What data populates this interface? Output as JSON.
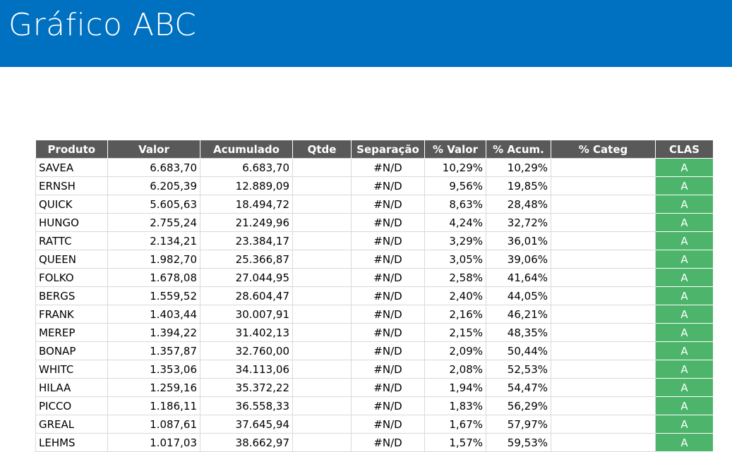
{
  "header": {
    "title": "Gráfico ABC"
  },
  "table": {
    "columns": [
      "Produto",
      "Valor",
      "Acumulado",
      "Qtde",
      "Separação",
      "% Valor",
      "% Acum.",
      "% Categ",
      "CLAS"
    ],
    "rows": [
      {
        "produto": "SAVEA",
        "valor": "6.683,70",
        "acumulado": "6.683,70",
        "separacao": "#N/D",
        "pct_valor": "10,29%",
        "pct_acum": "10,29%",
        "clas": "A"
      },
      {
        "produto": "ERNSH",
        "valor": "6.205,39",
        "acumulado": "12.889,09",
        "separacao": "#N/D",
        "pct_valor": "9,56%",
        "pct_acum": "19,85%",
        "clas": "A"
      },
      {
        "produto": "QUICK",
        "valor": "5.605,63",
        "acumulado": "18.494,72",
        "separacao": "#N/D",
        "pct_valor": "8,63%",
        "pct_acum": "28,48%",
        "clas": "A"
      },
      {
        "produto": "HUNGO",
        "valor": "2.755,24",
        "acumulado": "21.249,96",
        "separacao": "#N/D",
        "pct_valor": "4,24%",
        "pct_acum": "32,72%",
        "clas": "A"
      },
      {
        "produto": "RATTC",
        "valor": "2.134,21",
        "acumulado": "23.384,17",
        "separacao": "#N/D",
        "pct_valor": "3,29%",
        "pct_acum": "36,01%",
        "clas": "A"
      },
      {
        "produto": "QUEEN",
        "valor": "1.982,70",
        "acumulado": "25.366,87",
        "separacao": "#N/D",
        "pct_valor": "3,05%",
        "pct_acum": "39,06%",
        "clas": "A"
      },
      {
        "produto": "FOLKO",
        "valor": "1.678,08",
        "acumulado": "27.044,95",
        "separacao": "#N/D",
        "pct_valor": "2,58%",
        "pct_acum": "41,64%",
        "clas": "A"
      },
      {
        "produto": "BERGS",
        "valor": "1.559,52",
        "acumulado": "28.604,47",
        "separacao": "#N/D",
        "pct_valor": "2,40%",
        "pct_acum": "44,05%",
        "clas": "A"
      },
      {
        "produto": "FRANK",
        "valor": "1.403,44",
        "acumulado": "30.007,91",
        "separacao": "#N/D",
        "pct_valor": "2,16%",
        "pct_acum": "46,21%",
        "clas": "A"
      },
      {
        "produto": "MEREP",
        "valor": "1.394,22",
        "acumulado": "31.402,13",
        "separacao": "#N/D",
        "pct_valor": "2,15%",
        "pct_acum": "48,35%",
        "clas": "A"
      },
      {
        "produto": "BONAP",
        "valor": "1.357,87",
        "acumulado": "32.760,00",
        "separacao": "#N/D",
        "pct_valor": "2,09%",
        "pct_acum": "50,44%",
        "clas": "A"
      },
      {
        "produto": "WHITC",
        "valor": "1.353,06",
        "acumulado": "34.113,06",
        "separacao": "#N/D",
        "pct_valor": "2,08%",
        "pct_acum": "52,53%",
        "clas": "A"
      },
      {
        "produto": "HILAA",
        "valor": "1.259,16",
        "acumulado": "35.372,22",
        "separacao": "#N/D",
        "pct_valor": "1,94%",
        "pct_acum": "54,47%",
        "clas": "A"
      },
      {
        "produto": "PICCO",
        "valor": "1.186,11",
        "acumulado": "36.558,33",
        "separacao": "#N/D",
        "pct_valor": "1,83%",
        "pct_acum": "56,29%",
        "clas": "A"
      },
      {
        "produto": "GREAL",
        "valor": "1.087,61",
        "acumulado": "37.645,94",
        "separacao": "#N/D",
        "pct_valor": "1,67%",
        "pct_acum": "57,97%",
        "clas": "A"
      },
      {
        "produto": "LEHMS",
        "valor": "1.017,03",
        "acumulado": "38.662,97",
        "separacao": "#N/D",
        "pct_valor": "1,57%",
        "pct_acum": "59,53%",
        "clas": "A"
      }
    ]
  }
}
